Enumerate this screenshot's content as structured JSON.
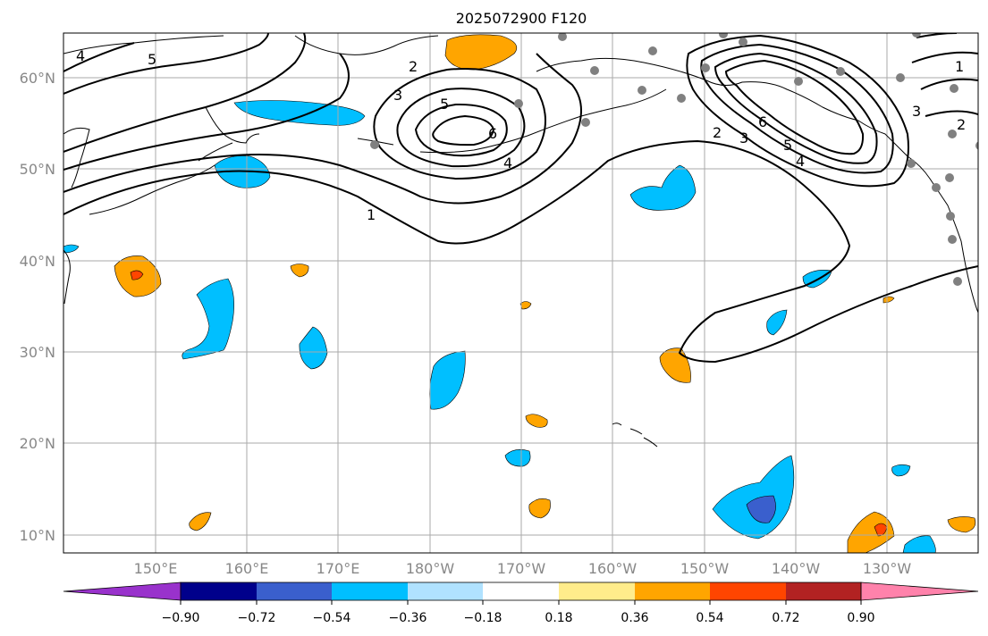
{
  "title": "2025072900 F120",
  "map": {
    "x_ticks": [
      "150°E",
      "160°E",
      "170°E",
      "180°W",
      "170°W",
      "160°W",
      "150°W",
      "140°W",
      "130°W"
    ],
    "y_ticks": [
      "10°N",
      "20°N",
      "30°N",
      "40°N",
      "50°N",
      "60°N"
    ],
    "grid": true,
    "contour_color": "#000000",
    "contour_labels": [
      "4",
      "5",
      "2",
      "3",
      "5",
      "6",
      "4",
      "1",
      "2",
      "3",
      "6",
      "5",
      "4",
      "1",
      "3",
      "2"
    ],
    "station_marker_color": "#808080"
  },
  "colorbar": {
    "extend": "both",
    "tick_labels": [
      "−0.90",
      "−0.72",
      "−0.54",
      "−0.36",
      "−0.18",
      "0.18",
      "0.36",
      "0.54",
      "0.72",
      "0.90"
    ],
    "colors": [
      "#9932CC",
      "#00008B",
      "#3A5FCD",
      "#00BFFF",
      "#B0E2FF",
      "#FFFFFF",
      "#FFEC8B",
      "#FFA500",
      "#FF4500",
      "#B22222",
      "#FF82AB"
    ]
  },
  "shading_colors": {
    "neg_light": "#00BFFF",
    "neg_mid": "#3A5FCD",
    "pos_light": "#FFA500",
    "pos_mid": "#FF4500"
  }
}
